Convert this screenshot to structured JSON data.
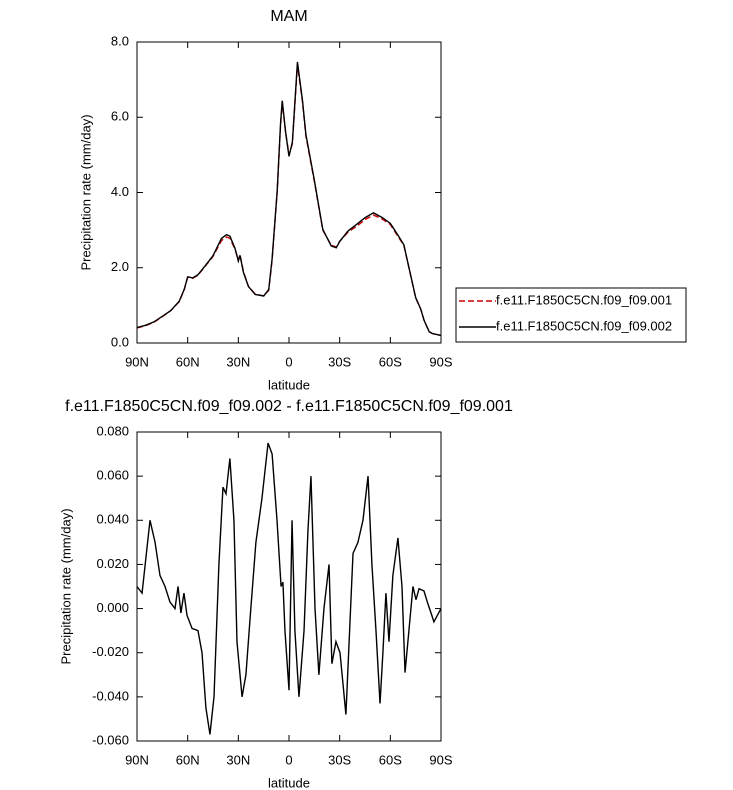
{
  "chart_data": [
    {
      "type": "line",
      "title": "MAM",
      "xlabel": "latitude",
      "ylabel": "Precipitation rate (mm/day)",
      "x": [
        90,
        85,
        80,
        75,
        70,
        65,
        62,
        60,
        57,
        54,
        50,
        45,
        40,
        37,
        35,
        32,
        30,
        29,
        27,
        24,
        20,
        15,
        12,
        10,
        7,
        5,
        4,
        2,
        0,
        -2,
        -5,
        -8,
        -10,
        -15,
        -20,
        -25,
        -28,
        -30,
        -35,
        -40,
        -45,
        -50,
        -55,
        -60,
        -65,
        -68,
        -70,
        -75,
        -78,
        -80,
        -83,
        -85,
        -90
      ],
      "series": [
        {
          "name": "f.e11.F1850C5CN.f09_f09.001",
          "color": "#cc0000",
          "dash": "dashed",
          "values": [
            0.4,
            0.46,
            0.55,
            0.7,
            0.86,
            1.1,
            1.42,
            1.75,
            1.72,
            1.8,
            2.02,
            2.3,
            2.72,
            2.82,
            2.78,
            2.5,
            2.2,
            2.35,
            1.9,
            1.5,
            1.3,
            1.25,
            1.4,
            2.2,
            4.0,
            5.8,
            6.4,
            5.6,
            5.0,
            5.3,
            7.4,
            6.4,
            5.5,
            4.3,
            3.0,
            2.6,
            2.55,
            2.7,
            2.95,
            3.1,
            3.28,
            3.4,
            3.3,
            3.15,
            2.8,
            2.6,
            2.2,
            1.2,
            0.9,
            0.6,
            0.3,
            0.25,
            0.2
          ]
        },
        {
          "name": "f.e11.F1850C5CN.f09_f09.002",
          "color": "#000000",
          "dash": "solid",
          "values": [
            0.41,
            0.47,
            0.56,
            0.71,
            0.86,
            1.11,
            1.43,
            1.76,
            1.73,
            1.81,
            2.03,
            2.32,
            2.78,
            2.88,
            2.84,
            2.52,
            2.18,
            2.33,
            1.88,
            1.5,
            1.29,
            1.25,
            1.42,
            2.24,
            4.04,
            5.84,
            6.44,
            5.6,
            4.96,
            5.34,
            7.47,
            6.44,
            5.54,
            4.33,
            3.02,
            2.58,
            2.53,
            2.7,
            2.98,
            3.15,
            3.33,
            3.46,
            3.34,
            3.18,
            2.83,
            2.61,
            2.21,
            1.21,
            0.9,
            0.6,
            0.3,
            0.25,
            0.2
          ]
        }
      ],
      "xlim": [
        90,
        -90
      ],
      "xticks": [
        {
          "value": 90,
          "label": "90N"
        },
        {
          "value": 60,
          "label": "60N"
        },
        {
          "value": 30,
          "label": "30N"
        },
        0,
        {
          "value": -30,
          "label": "30S"
        },
        {
          "value": -60,
          "label": "60S"
        },
        {
          "value": -90,
          "label": "90S"
        }
      ],
      "ylim": [
        0,
        8
      ],
      "yticks": [
        {
          "value": 0,
          "label": "0.0"
        },
        {
          "value": 2,
          "label": "2.0"
        },
        {
          "value": 4,
          "label": "4.0"
        },
        {
          "value": 6,
          "label": "6.0"
        },
        {
          "value": 8,
          "label": "8.0"
        }
      ],
      "legend": "right"
    },
    {
      "type": "line",
      "title": "f.e11.F1850C5CN.f09_f09.002 - f.e11.F1850C5CN.f09_f09.001",
      "xlabel": "latitude",
      "ylabel": "Precipitation rate (mm/day)",
      "x": [
        90,
        87,
        82.3,
        79.3,
        76.4,
        73.4,
        70.5,
        67.5,
        65.7,
        64,
        62.2,
        60.4,
        57.4,
        53.9,
        51.5,
        49.2,
        46.8,
        44.4,
        41.5,
        39.1,
        37.3,
        35,
        32.6,
        30.8,
        27.8,
        25.5,
        23.1,
        19.6,
        16,
        12.4,
        10,
        7.1,
        4.7,
        3.6,
        2.4,
        0,
        -1.8,
        -3.5,
        -5.9,
        -8.9,
        -11.2,
        -13,
        -15.4,
        -17.7,
        -20.7,
        -23.7,
        -25.4,
        -27.8,
        -30.2,
        -33.7,
        -37.9,
        -40.8,
        -43.8,
        -46.8,
        -49.1,
        -51.5,
        -53.9,
        -55.6,
        -57.4,
        -59.2,
        -61.5,
        -64.5,
        -66.9,
        -68.7,
        -71,
        -73.4,
        -75.2,
        -77,
        -79.9,
        -82.3,
        -84.1,
        -85.8,
        -90
      ],
      "series": [
        {
          "color": "#000000",
          "dash": "solid",
          "values": [
            0.01,
            0.007,
            0.04,
            0.03,
            0.015,
            0.01,
            0.003,
            0.0,
            0.01,
            -0.002,
            0.007,
            -0.003,
            -0.009,
            -0.01,
            -0.02,
            -0.045,
            -0.057,
            -0.04,
            0.02,
            0.055,
            0.052,
            0.068,
            0.04,
            -0.015,
            -0.04,
            -0.03,
            -0.005,
            0.03,
            0.05,
            0.075,
            0.07,
            0.04,
            0.01,
            0.012,
            -0.01,
            -0.037,
            0.04,
            -0.01,
            -0.04,
            -0.01,
            0.035,
            0.06,
            0.0,
            -0.03,
            0.0,
            0.02,
            -0.025,
            -0.015,
            -0.02,
            -0.048,
            0.025,
            0.03,
            0.04,
            0.06,
            0.02,
            -0.01,
            -0.043,
            -0.02,
            0.007,
            -0.015,
            0.015,
            0.032,
            0.01,
            -0.029,
            -0.01,
            0.01,
            0.004,
            0.009,
            0.008,
            0.002,
            -0.002,
            -0.006,
            0.0
          ]
        }
      ],
      "xlim": [
        90,
        -90
      ],
      "xticks": [
        {
          "value": 90,
          "label": "90N"
        },
        {
          "value": 60,
          "label": "60N"
        },
        {
          "value": 30,
          "label": "30N"
        },
        0,
        {
          "value": -30,
          "label": "30S"
        },
        {
          "value": -60,
          "label": "60S"
        },
        {
          "value": -90,
          "label": "90S"
        }
      ],
      "ylim": [
        -0.06,
        0.08
      ],
      "yticks": [
        {
          "value": -0.06,
          "label": "-0.060"
        },
        {
          "value": -0.04,
          "label": "-0.040"
        },
        {
          "value": -0.02,
          "label": "-0.020"
        },
        {
          "value": 0,
          "label": "0.000"
        },
        {
          "value": 0.02,
          "label": "0.020"
        },
        {
          "value": 0.04,
          "label": "0.040"
        },
        {
          "value": 0.06,
          "label": "0.060"
        },
        {
          "value": 0.08,
          "label": "0.080"
        }
      ]
    }
  ]
}
